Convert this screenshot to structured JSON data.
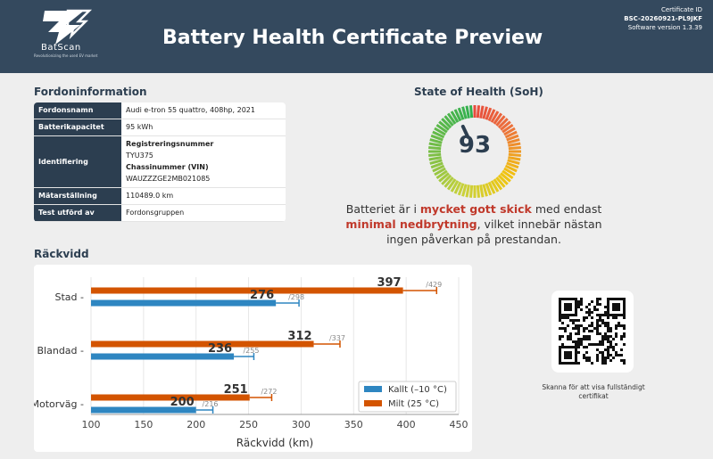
{
  "header": {
    "logo_name": "BatScan",
    "logo_tagline": "Revolutionizing the used EV market",
    "title": "Battery Health Certificate Preview",
    "certificate_id_label": "Certificate ID",
    "certificate_id": "BSC-20260921-PL9JKF",
    "software_version": "Software version 1.3.39"
  },
  "vehicle": {
    "section_title": "Fordoninformation",
    "rows": {
      "model": {
        "label": "Fordonsnamn",
        "value": "Audi e-tron 55 quattro, 408hp, 2021"
      },
      "capacity": {
        "label": "Batterikapacitet",
        "value": "95 kWh"
      },
      "identification": {
        "label": "Identifiering",
        "reg_label": "Registreringsnummer",
        "reg_value": "TYU375",
        "vin_label": "Chassinummer (VIN)",
        "vin_value": "WAUZZZGE2MB021085"
      },
      "odometer": {
        "label": "Mätarställning",
        "value": "110489.0 km"
      },
      "tested_by": {
        "label": "Test utförd av",
        "value": "Fordonsgruppen"
      }
    }
  },
  "soh": {
    "section_title": "State of Health (SoH)",
    "value": "93",
    "value_fraction": 0.93,
    "text_1": "Batteriet är i ",
    "text_em_1": "mycket gott skick",
    "text_2": " med endast ",
    "text_em_2": "minimal nedbrytning",
    "text_3": ", vilket innebär nästan ingen påverkan på prestandan."
  },
  "range_section": {
    "title": "Räckvidd"
  },
  "chart_data": {
    "type": "bar",
    "orientation": "horizontal",
    "categories": [
      "Stad",
      "Blandad",
      "Motorväg"
    ],
    "series": [
      {
        "name": "Milt (25 °C)",
        "color": "#d35400",
        "values": [
          397,
          312,
          251
        ],
        "max_values": [
          429,
          337,
          272
        ]
      },
      {
        "name": "Kallt (–10 °C)",
        "color": "#2e86c1",
        "values": [
          276,
          236,
          200
        ],
        "max_values": [
          298,
          255,
          216
        ]
      }
    ],
    "legend": [
      {
        "label": "Kallt (–10 °C)",
        "color": "#2e86c1"
      },
      {
        "label": "Milt (25 °C)",
        "color": "#d35400"
      }
    ],
    "legend_position": "bottom-right",
    "xlabel": "Räckvidd (km)",
    "xlim": [
      100,
      450
    ],
    "xticks": [
      100,
      150,
      200,
      250,
      300,
      350,
      400,
      450
    ],
    "grid": true
  },
  "qr": {
    "caption": "Skanna för att visa fullständigt certifikat"
  }
}
